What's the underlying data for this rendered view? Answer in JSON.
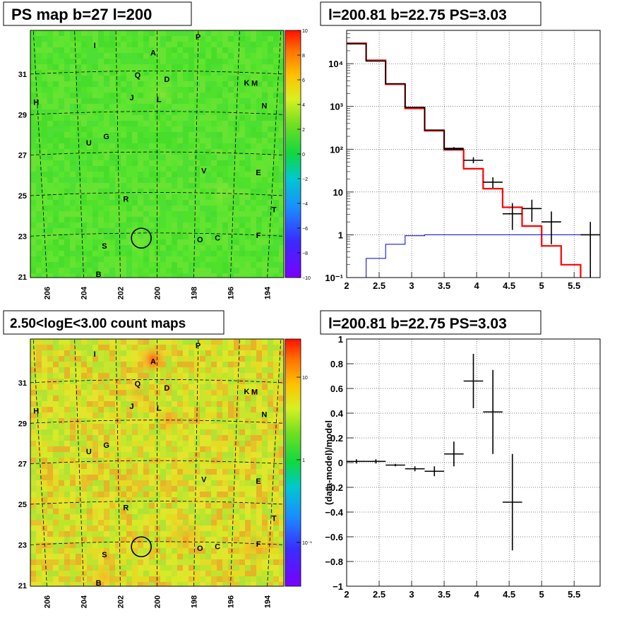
{
  "chart_data": [
    {
      "type": "heatmap",
      "title": "PS map b=27 l=200",
      "xticks": [
        "206",
        "204",
        "202",
        "200",
        "198",
        "196",
        "194"
      ],
      "yticks": [
        "31",
        "29",
        "27",
        "25",
        "23",
        "21"
      ],
      "xlim": [
        206.5,
        193.5
      ],
      "ylim": [
        20.8,
        33.0
      ],
      "colorbar": {
        "ticks": [
          "10",
          "8",
          "6",
          "4",
          "2",
          "0",
          "−2",
          "−4",
          "−6",
          "−8",
          "−10"
        ],
        "range": [
          -10,
          10
        ]
      },
      "sources": [
        {
          "label": "P",
          "l": 197.9,
          "b": 32.7
        },
        {
          "label": "I",
          "l": 203.2,
          "b": 32.3
        },
        {
          "label": "A",
          "l": 200.2,
          "b": 31.9
        },
        {
          "label": "Q",
          "l": 201.0,
          "b": 30.8
        },
        {
          "label": "D",
          "l": 199.5,
          "b": 30.6
        },
        {
          "label": "K",
          "l": 195.4,
          "b": 30.5
        },
        {
          "label": "M",
          "l": 195.0,
          "b": 30.5
        },
        {
          "label": "J",
          "l": 201.3,
          "b": 29.7
        },
        {
          "label": "L",
          "l": 199.9,
          "b": 29.6
        },
        {
          "label": "H",
          "l": 206.2,
          "b": 29.6
        },
        {
          "label": "N",
          "l": 194.5,
          "b": 29.4
        },
        {
          "label": "G",
          "l": 202.6,
          "b": 27.8
        },
        {
          "label": "U",
          "l": 203.5,
          "b": 27.5
        },
        {
          "label": "V",
          "l": 197.6,
          "b": 26.1
        },
        {
          "label": "E",
          "l": 194.8,
          "b": 26.1
        },
        {
          "label": "R",
          "l": 201.6,
          "b": 24.7
        },
        {
          "label": "T",
          "l": 194.0,
          "b": 24.3
        },
        {
          "label": "F",
          "l": 194.8,
          "b": 23.0
        },
        {
          "label": "O",
          "l": 197.8,
          "b": 22.7
        },
        {
          "label": "C",
          "l": 196.9,
          "b": 22.8
        },
        {
          "label": "S",
          "l": 202.7,
          "b": 22.4
        },
        {
          "label": "B",
          "l": 203.0,
          "b": 21.0
        }
      ],
      "marker": {
        "l": 200.81,
        "b": 22.75,
        "radius_deg": 0.5
      }
    },
    {
      "type": "line",
      "title": "l=200.81 b=22.75 PS=3.03",
      "xlim": [
        2.0,
        5.9
      ],
      "ylim": [
        0.1,
        60000
      ],
      "yscale": "log",
      "xticks": [
        "2",
        "2.5",
        "3",
        "3.5",
        "4",
        "4.5",
        "5",
        "5.5"
      ],
      "yticks": [
        "10⁻¹",
        "1",
        "10",
        "10²",
        "10³",
        "10⁴"
      ],
      "grid": true,
      "bin_edges": [
        2.0,
        2.3,
        2.6,
        2.9,
        3.2,
        3.5,
        3.8,
        4.1,
        4.4,
        4.7,
        5.0,
        5.3,
        5.6,
        5.9
      ],
      "series": [
        {
          "color": "#ff0000",
          "style": "step",
          "values": [
            30000,
            12000,
            3300,
            900,
            270,
            97,
            35,
            12,
            4.4,
            1.6,
            0.55,
            0.2,
            0.07
          ]
        },
        {
          "color": "#000000",
          "style": "step",
          "values": [
            29000,
            11500,
            3400,
            950,
            280,
            100
          ]
        },
        {
          "color": "#0000cc",
          "style": "step",
          "values": [
            0.1,
            0.28,
            0.6,
            0.95,
            1.0,
            1.0,
            1.0,
            1.0,
            1.0,
            1.0,
            1.0,
            1.0,
            1.0
          ]
        },
        {
          "color": "#000000",
          "style": "errorbar",
          "points": [
            {
              "x": 3.65,
              "y": 105,
              "xerr": 0.15,
              "lo": 98,
              "hi": 112
            },
            {
              "x": 3.95,
              "y": 55,
              "xerr": 0.15,
              "lo": 47,
              "hi": 65
            },
            {
              "x": 4.25,
              "y": 17,
              "xerr": 0.15,
              "lo": 12.5,
              "hi": 22
            },
            {
              "x": 4.55,
              "y": 3.1,
              "xerr": 0.15,
              "lo": 1.3,
              "hi": 5.5
            },
            {
              "x": 4.85,
              "y": 4.1,
              "xerr": 0.15,
              "lo": 2.0,
              "hi": 6.6
            },
            {
              "x": 5.15,
              "y": 2.0,
              "xerr": 0.15,
              "lo": 0.6,
              "hi": 3.5
            },
            {
              "x": 5.75,
              "y": 1.0,
              "xerr": 0.15,
              "lo": 0.1,
              "hi": 2.0
            }
          ]
        }
      ]
    },
    {
      "type": "heatmap",
      "title": "2.50<logE<3.00 count maps",
      "xticks": [
        "206",
        "204",
        "202",
        "200",
        "198",
        "196",
        "194"
      ],
      "yticks": [
        "31",
        "29",
        "27",
        "25",
        "23",
        "21"
      ],
      "xlim": [
        206.5,
        193.5
      ],
      "ylim": [
        20.8,
        33.0
      ],
      "colorbar": {
        "ticks": [
          "10",
          "1",
          "10⁻¹"
        ],
        "scale": "log"
      }
    },
    {
      "type": "scatter",
      "title": "l=200.81 b=22.75 PS=3.03",
      "ylabel": "(data-model)/model",
      "xlim": [
        2.0,
        5.9
      ],
      "ylim": [
        -1.0,
        1.0
      ],
      "xticks": [
        "2",
        "2.5",
        "3",
        "3.5",
        "4",
        "4.5",
        "5",
        "5.5"
      ],
      "yticks": [
        "1",
        "0.8",
        "0.6",
        "0.4",
        "0.2",
        "0",
        "−0.2",
        "−0.4",
        "−0.6",
        "−0.8",
        "−1"
      ],
      "grid": true,
      "points": [
        {
          "x": 2.15,
          "y": 0.01,
          "xerr": 0.15,
          "err": 0.0
        },
        {
          "x": 2.45,
          "y": 0.01,
          "xerr": 0.15,
          "err": 0.0
        },
        {
          "x": 2.75,
          "y": -0.02,
          "xerr": 0.15,
          "err": 0.01
        },
        {
          "x": 3.05,
          "y": -0.05,
          "xerr": 0.15,
          "err": 0.02
        },
        {
          "x": 3.35,
          "y": -0.07,
          "xerr": 0.15,
          "err": 0.04
        },
        {
          "x": 3.65,
          "y": 0.07,
          "xerr": 0.15,
          "err": 0.1
        },
        {
          "x": 3.95,
          "y": 0.66,
          "xerr": 0.15,
          "err": 0.22
        },
        {
          "x": 4.25,
          "y": 0.41,
          "xerr": 0.15,
          "err": 0.34
        },
        {
          "x": 4.55,
          "y": -0.32,
          "xerr": 0.15,
          "err": 0.39
        }
      ]
    }
  ]
}
